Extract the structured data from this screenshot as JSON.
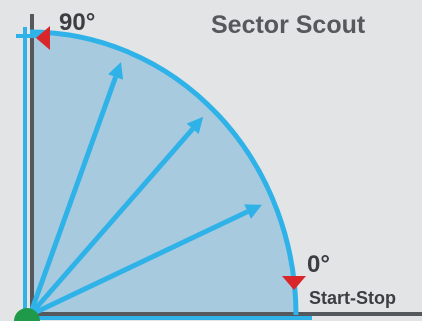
{
  "title": "Sector Scout",
  "angle_labels": {
    "top": "90°",
    "right": "0°"
  },
  "start_stop_label": "Start-Stop",
  "colors": {
    "background": "#e3e4e5",
    "sector_fill": "#a8cadf",
    "arc_and_arrows": "#2fb2e8",
    "axes": "#55585c",
    "start_marker": "#d9262b",
    "origin_dot": "#1e9a4a"
  },
  "sector": {
    "start_angle_deg": 0,
    "end_angle_deg": 90
  },
  "arrow_angles_deg": [
    24,
    47,
    69
  ]
}
